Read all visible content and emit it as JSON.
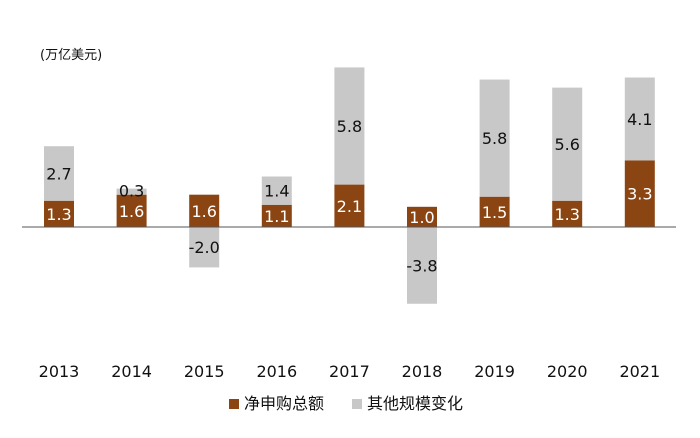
{
  "chart_data": {
    "type": "bar",
    "stacked": true,
    "unit_label": "(万亿美元)",
    "categories": [
      "2013",
      "2014",
      "2015",
      "2016",
      "2017",
      "2018",
      "2019",
      "2020",
      "2021"
    ],
    "series": [
      {
        "name": "净申购总额",
        "color": "#8B4513",
        "label_color": "#ffffff",
        "values": [
          1.3,
          1.6,
          1.6,
          1.1,
          2.1,
          1.0,
          1.5,
          1.3,
          3.3
        ],
        "labels": [
          "1.3",
          "1.6",
          "1.6",
          "1.1",
          "2.1",
          "1.0",
          "1.5",
          "1.3",
          "3.3"
        ]
      },
      {
        "name": "其他规模变化",
        "color": "#C8C8C8",
        "label_color": "#111111",
        "values": [
          2.7,
          0.3,
          -2.0,
          1.4,
          5.8,
          -3.8,
          5.8,
          5.6,
          4.1
        ],
        "labels": [
          "2.7",
          "0.3",
          "-2.0",
          "1.4",
          "5.8",
          "-3.8",
          "5.8",
          "5.6",
          "4.1"
        ]
      }
    ],
    "ylim": [
      -4.0,
      8.0
    ],
    "grid": false,
    "legend_position": "bottom-center"
  }
}
